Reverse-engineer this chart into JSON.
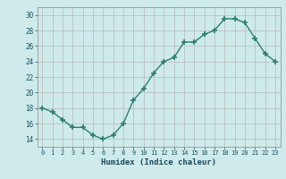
{
  "x": [
    0,
    1,
    2,
    3,
    4,
    5,
    6,
    7,
    8,
    9,
    10,
    11,
    12,
    13,
    14,
    15,
    16,
    17,
    18,
    19,
    20,
    21,
    22,
    23
  ],
  "y": [
    18.0,
    17.5,
    16.5,
    15.5,
    15.5,
    14.5,
    14.0,
    14.5,
    16.0,
    19.0,
    20.5,
    22.5,
    24.0,
    24.5,
    26.5,
    26.5,
    27.5,
    28.0,
    29.5,
    29.5,
    29.0,
    27.0,
    25.0,
    24.0
  ],
  "xlabel": "Humidex (Indice chaleur)",
  "ylim": [
    13,
    31
  ],
  "xlim": [
    -0.5,
    23.5
  ],
  "yticks": [
    14,
    16,
    18,
    20,
    22,
    24,
    26,
    28,
    30
  ],
  "xticks": [
    0,
    1,
    2,
    3,
    4,
    5,
    6,
    7,
    8,
    9,
    10,
    11,
    12,
    13,
    14,
    15,
    16,
    17,
    18,
    19,
    20,
    21,
    22,
    23
  ],
  "bg_color": "#ceeaea",
  "line_color": "#2e7d6e",
  "marker_color": "#2e7d6e",
  "grid_color_major": "#b8b8b8",
  "grid_color_minor": "#d8d8d8",
  "text_color": "#1a5060",
  "xlabel_color": "#1a4a5a"
}
